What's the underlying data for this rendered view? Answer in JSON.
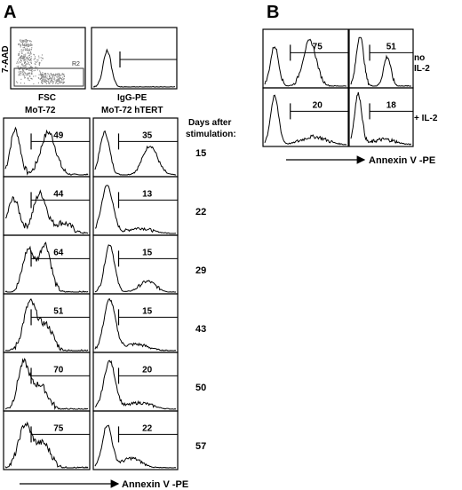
{
  "panel_labels": {
    "a": "A",
    "b": "B"
  },
  "scatter": {
    "ylabel": "7-AAD",
    "xlabel": "FSC",
    "gate": "R2"
  },
  "control": {
    "label": "IgG-PE"
  },
  "columns": [
    "MoT-72",
    "MoT-72 hTERT"
  ],
  "days_header": [
    "Days after",
    "stimulation:"
  ],
  "days": [
    "15",
    "22",
    "29",
    "43",
    "50",
    "57"
  ],
  "annexin_a": {
    "mot72": [
      "49",
      "44",
      "64",
      "51",
      "70",
      "75"
    ],
    "htert": [
      "35",
      "13",
      "15",
      "15",
      "20",
      "22"
    ]
  },
  "panel_b": {
    "values": [
      [
        "75",
        "51"
      ],
      [
        "20",
        "18"
      ]
    ],
    "row_labels": [
      [
        "no",
        "IL-2"
      ],
      [
        "+ IL-2"
      ]
    ]
  },
  "xaxis_label": "Annexin V -PE"
}
